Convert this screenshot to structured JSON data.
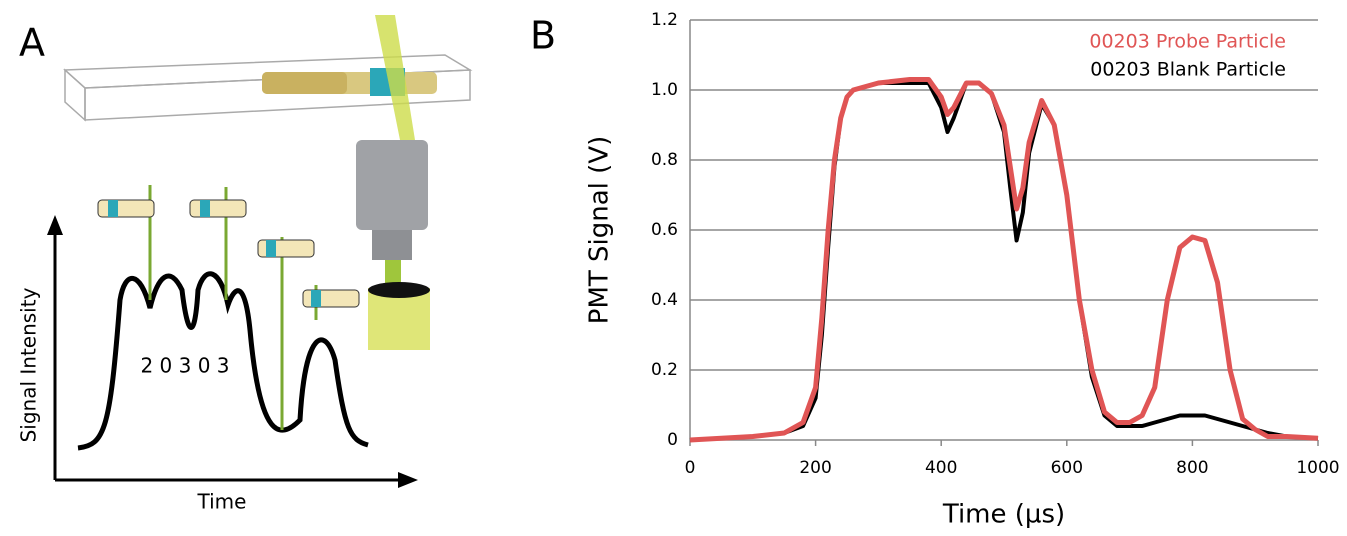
{
  "panel_a": {
    "label": "A",
    "y_label": "Signal Intensity",
    "x_label": "Time",
    "digits": "2 0 3 0 3"
  },
  "chart_data": {
    "type": "line",
    "panel_label": "B",
    "x_label": "Time (µs)",
    "y_label": "PMT Signal (V)",
    "x": [
      0,
      50,
      100,
      150,
      180,
      200,
      210,
      220,
      230,
      240,
      250,
      260,
      280,
      300,
      350,
      380,
      400,
      410,
      420,
      440,
      460,
      480,
      500,
      510,
      520,
      530,
      540,
      560,
      580,
      600,
      620,
      640,
      660,
      680,
      700,
      720,
      740,
      760,
      780,
      800,
      820,
      840,
      860,
      880,
      900,
      920,
      950,
      1000
    ],
    "series": [
      {
        "name": "00203 Blank Particle",
        "color": "#000000",
        "values": [
          0,
          0.005,
          0.01,
          0.02,
          0.04,
          0.12,
          0.3,
          0.55,
          0.78,
          0.92,
          0.98,
          1.0,
          1.01,
          1.02,
          1.02,
          1.02,
          0.95,
          0.88,
          0.92,
          1.02,
          1.02,
          0.99,
          0.88,
          0.72,
          0.57,
          0.65,
          0.82,
          0.96,
          0.9,
          0.7,
          0.4,
          0.18,
          0.07,
          0.04,
          0.04,
          0.04,
          0.05,
          0.06,
          0.07,
          0.07,
          0.07,
          0.06,
          0.05,
          0.04,
          0.03,
          0.02,
          0.01,
          0.005
        ]
      },
      {
        "name": "00203 Probe Particle",
        "color": "#e05555",
        "values": [
          0,
          0.005,
          0.01,
          0.02,
          0.05,
          0.15,
          0.35,
          0.6,
          0.8,
          0.92,
          0.98,
          1.0,
          1.01,
          1.02,
          1.03,
          1.03,
          0.98,
          0.93,
          0.95,
          1.02,
          1.02,
          0.99,
          0.9,
          0.78,
          0.66,
          0.72,
          0.85,
          0.97,
          0.9,
          0.7,
          0.4,
          0.2,
          0.08,
          0.05,
          0.05,
          0.07,
          0.15,
          0.4,
          0.55,
          0.58,
          0.57,
          0.45,
          0.2,
          0.06,
          0.03,
          0.01,
          0.01,
          0.005
        ]
      }
    ],
    "xlim": [
      0,
      1000
    ],
    "xticks": [
      0,
      200,
      400,
      600,
      800,
      1000
    ],
    "ylim": [
      0,
      1.2
    ],
    "yticks": [
      0,
      0.2,
      0.4,
      0.6,
      0.8,
      {
        "value": 1,
        "label": "1.0"
      },
      1.2
    ],
    "grid": true,
    "legend": "upper right"
  }
}
